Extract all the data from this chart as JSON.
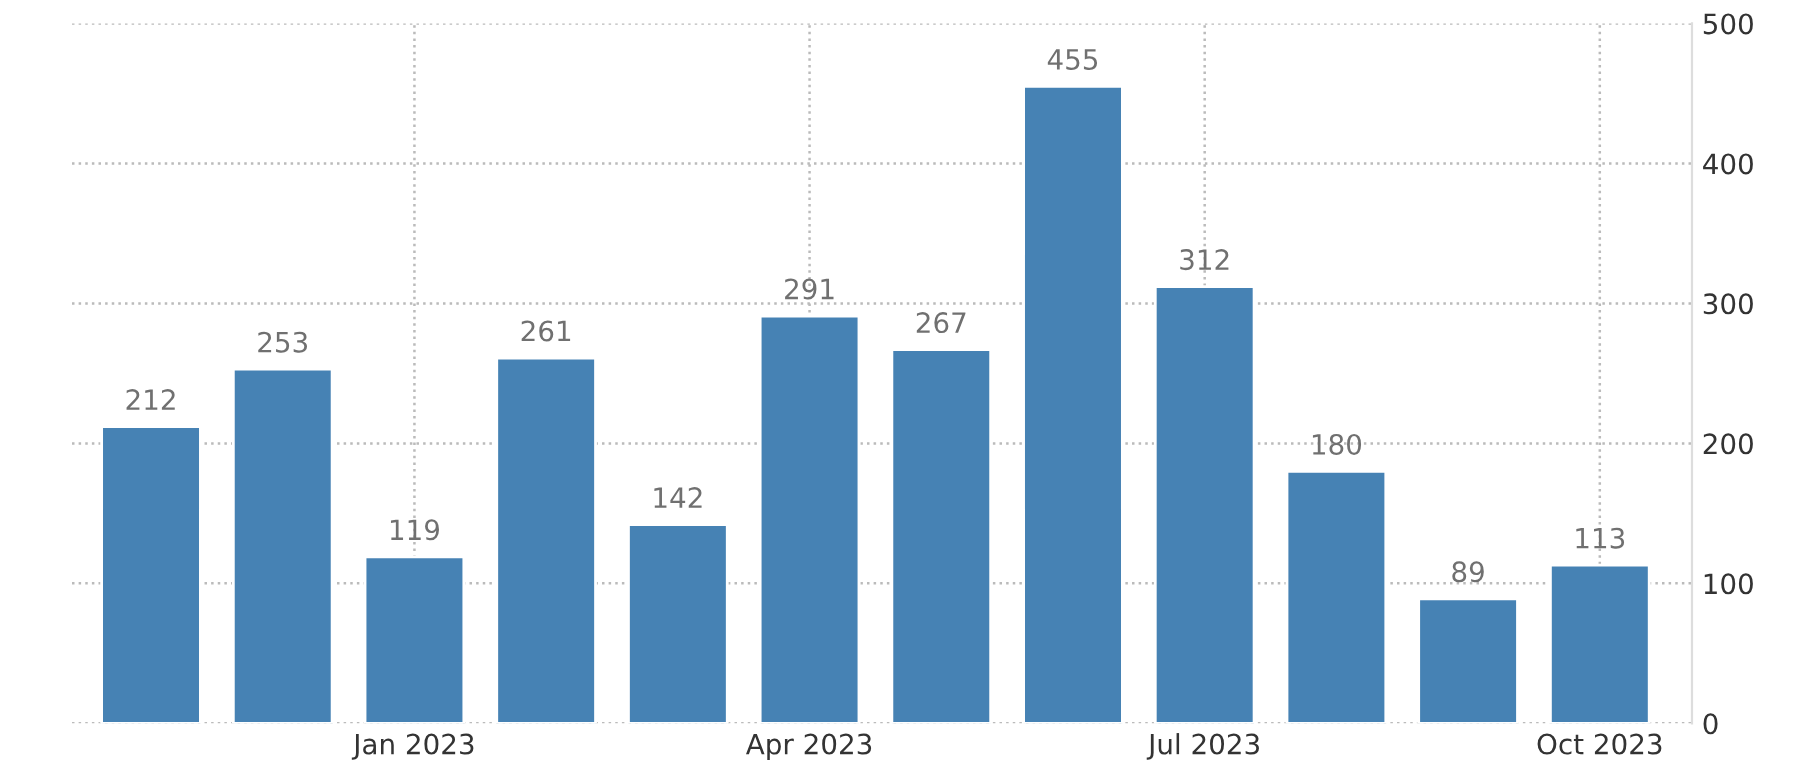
{
  "chart_data": {
    "type": "bar",
    "categories": [
      null,
      null,
      "Jan 2023",
      null,
      null,
      "Apr 2023",
      null,
      null,
      "Jul 2023",
      null,
      null,
      "Oct 2023"
    ],
    "values": [
      212,
      253,
      119,
      261,
      142,
      291,
      267,
      455,
      312,
      180,
      89,
      113
    ],
    "color": "#4682b4",
    "ylim": [
      0,
      500
    ],
    "yticks": [
      0,
      100,
      200,
      300,
      400,
      500
    ],
    "grid": true,
    "data_labels": true
  }
}
